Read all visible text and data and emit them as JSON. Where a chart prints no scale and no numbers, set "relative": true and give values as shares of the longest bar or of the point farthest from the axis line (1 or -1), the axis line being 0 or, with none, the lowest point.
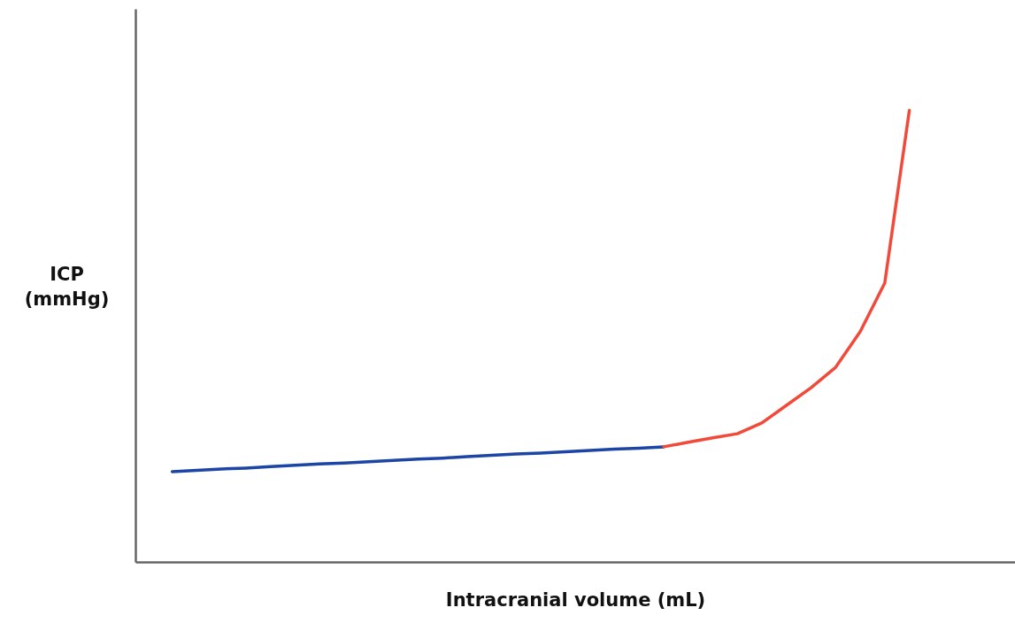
{
  "chart_data": {
    "type": "line",
    "relative": true,
    "xlabel": "Intracranial volume (mL)",
    "ylabel": "ICP (mmHg)",
    "grid": false,
    "marker": "none",
    "line_style": "solid",
    "categories": [
      null,
      null,
      null,
      null,
      null,
      null,
      null,
      null,
      null,
      null,
      null,
      null,
      null,
      null,
      null,
      null,
      null,
      null,
      null,
      null,
      null,
      null,
      null,
      null,
      null,
      null,
      null,
      null,
      null,
      null,
      null
    ],
    "series": [
      {
        "color": "#1c45a6",
        "values": [
          0.2,
          0.203,
          0.206,
          0.208,
          0.211,
          0.214,
          0.217,
          0.219,
          0.222,
          0.225,
          0.228,
          0.23,
          0.233,
          0.236,
          0.239,
          0.241,
          0.244,
          0.247,
          0.25,
          0.252,
          0.255,
          null,
          null,
          null,
          null,
          null,
          null,
          null,
          null,
          null,
          null
        ]
      },
      {
        "color": "#f24a3a",
        "values": [
          null,
          null,
          null,
          null,
          null,
          null,
          null,
          null,
          null,
          null,
          null,
          null,
          null,
          null,
          null,
          null,
          null,
          null,
          null,
          null,
          0.255,
          0.265,
          0.275,
          0.284,
          0.308,
          0.347,
          0.386,
          0.431,
          0.51,
          0.618,
          1.0
        ]
      }
    ]
  }
}
